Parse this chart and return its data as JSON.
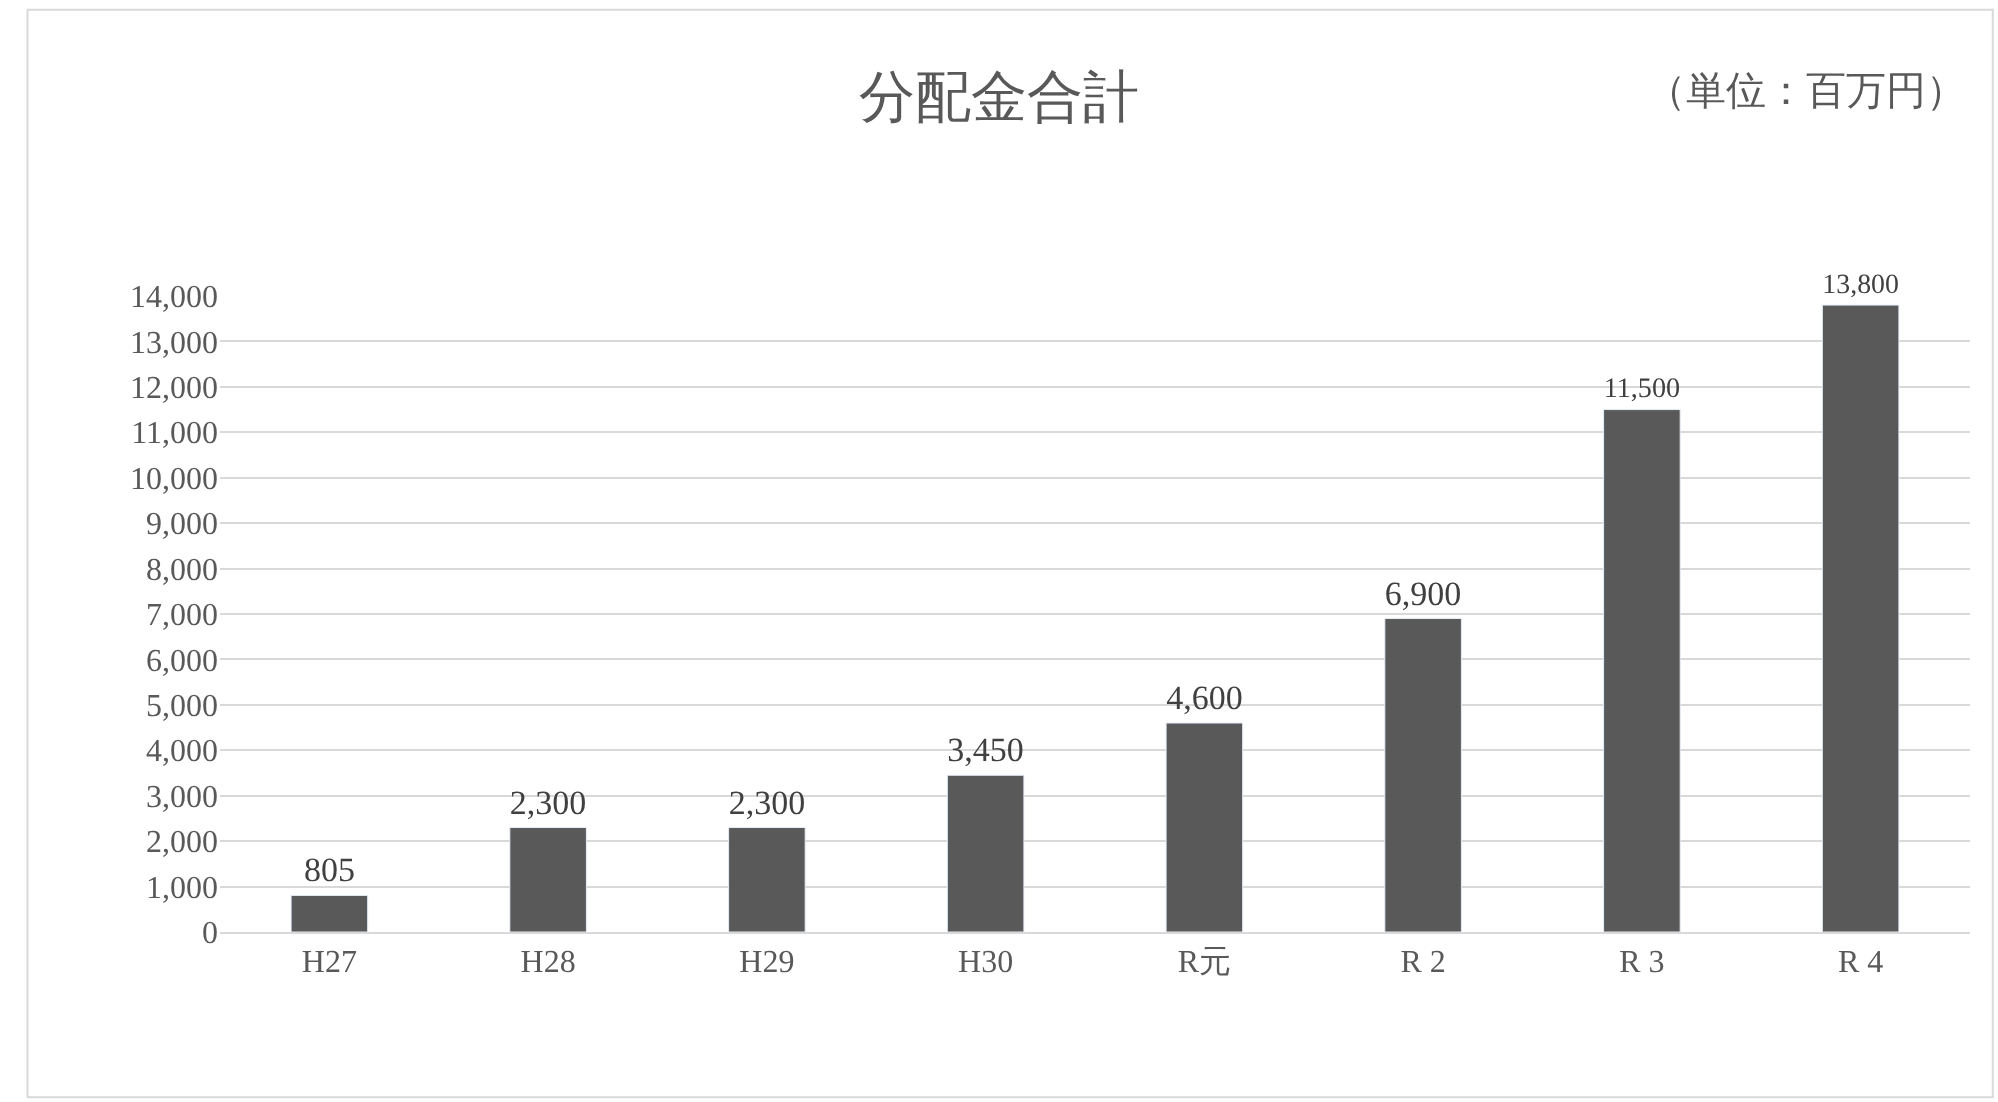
{
  "chart_data": {
    "type": "bar",
    "title": "分配金合計",
    "annotations": [
      "（単位：百万円）"
    ],
    "categories": [
      "H27",
      "H28",
      "H29",
      "H30",
      "R元",
      "R 2",
      "R 3",
      "R 4"
    ],
    "values": [
      805,
      2300,
      2300,
      3450,
      4600,
      6900,
      11500,
      13800
    ],
    "color": "#595959",
    "ylim": [
      0,
      14000
    ],
    "yticks": [
      {
        "value": 0,
        "label": "0"
      },
      {
        "value": 1000,
        "label": "1,000"
      },
      {
        "value": 2000,
        "label": "2,000"
      },
      {
        "value": 3000,
        "label": "3,000"
      },
      {
        "value": 4000,
        "label": "4,000"
      },
      {
        "value": 5000,
        "label": "5,000"
      },
      {
        "value": 6000,
        "label": "6,000"
      },
      {
        "value": 7000,
        "label": "7,000"
      },
      {
        "value": 8000,
        "label": "8,000"
      },
      {
        "value": 9000,
        "label": "9,000"
      },
      {
        "value": 10000,
        "label": "10,000"
      },
      {
        "value": 11000,
        "label": "11,000"
      },
      {
        "value": 12000,
        "label": "12,000"
      },
      {
        "value": 13000,
        "label": "13,000"
      },
      {
        "value": 14000,
        "label": "14,000"
      }
    ],
    "grid": "y",
    "value_labels": [
      "805",
      "2,300",
      "2,300",
      "3,450",
      "4,600",
      "6,900",
      "11,500",
      "13,800"
    ]
  }
}
